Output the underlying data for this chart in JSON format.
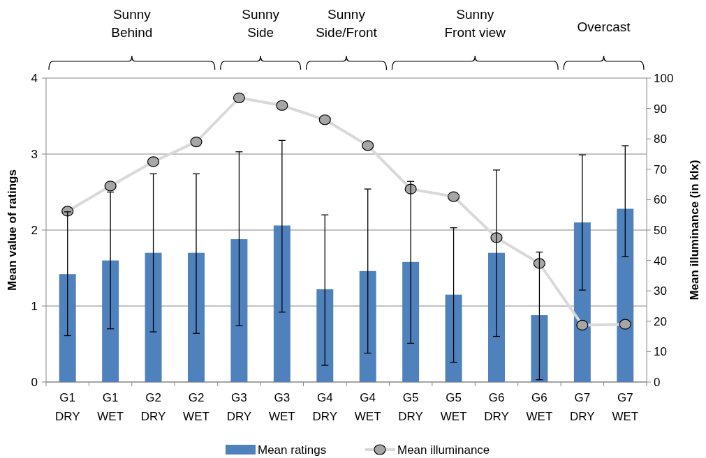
{
  "chart_data": {
    "type": "bar",
    "xlabel": null,
    "ylabel": "Mean value of ratings",
    "y2label": "Mean illuminance (in klx)",
    "categories": [
      "G1\nDRY",
      "G1\nWET",
      "G2\nDRY",
      "G2\nWET",
      "G3\nDRY",
      "G3\nWET",
      "G4\nDRY",
      "G4\nWET",
      "G5\nDRY",
      "G5\nWET",
      "G6\nDRY",
      "G6\nWET",
      "G7\nDRY",
      "G7\nWET"
    ],
    "series": [
      {
        "name": "Mean ratings",
        "color": "#4f81bd",
        "values": [
          1.42,
          1.6,
          1.7,
          1.7,
          1.88,
          2.06,
          1.22,
          1.46,
          1.58,
          1.15,
          1.7,
          0.88,
          2.1,
          2.28
        ],
        "errors": [
          [
            0.61,
            2.24
          ],
          [
            0.7,
            2.5
          ],
          [
            0.66,
            2.74
          ],
          [
            0.64,
            2.74
          ],
          [
            0.74,
            3.03
          ],
          [
            0.92,
            3.18
          ],
          [
            0.22,
            2.2
          ],
          [
            0.38,
            2.54
          ],
          [
            0.51,
            2.64
          ],
          [
            0.26,
            2.03
          ],
          [
            0.6,
            2.79
          ],
          [
            0.03,
            1.71
          ],
          [
            1.21,
            2.99
          ],
          [
            1.65,
            3.11
          ]
        ]
      },
      {
        "name": "Mean illuminance",
        "type": "line",
        "axis": "y2",
        "color": "#d9d9d9",
        "marker": "circle",
        "values": [
          56.2,
          64.5,
          72.5,
          79,
          93.5,
          91,
          86.3,
          77.8,
          63.5,
          61,
          47.5,
          39,
          18.7,
          19
        ]
      }
    ],
    "ylim": [
      0,
      4
    ],
    "yticks": [
      0,
      1,
      2,
      3,
      4
    ],
    "y2lim": [
      0,
      100
    ],
    "y2ticks": [
      0,
      10,
      20,
      30,
      40,
      50,
      60,
      70,
      80,
      90,
      100
    ],
    "grid": "y",
    "legend": "bottom",
    "annotations": [
      "Sunny\nBehind",
      "Sunny\nSide",
      "Sunny\nSide/Front",
      "Sunny\nFront view",
      "Overcast"
    ]
  }
}
